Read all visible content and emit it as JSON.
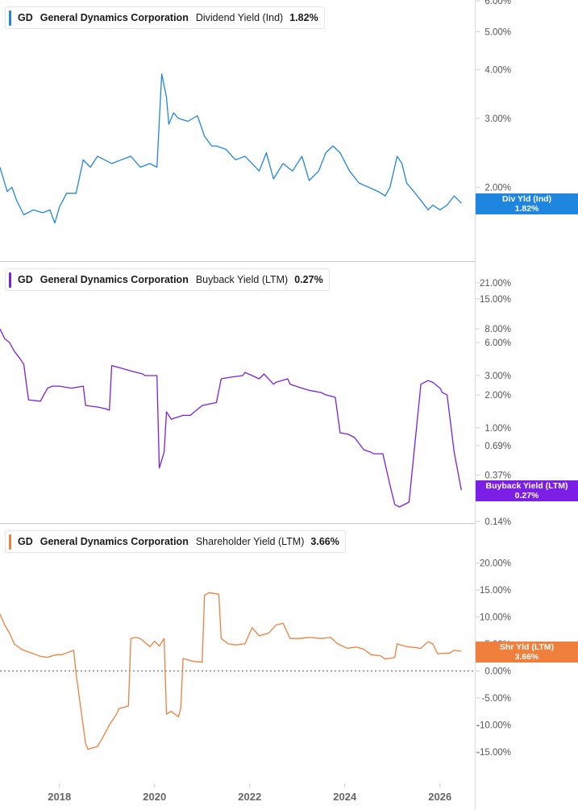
{
  "x_axis_labels": [
    "2018",
    "2020",
    "2022",
    "2024",
    "2026"
  ],
  "colors": {
    "dividend": "#1f86e0",
    "buyback": "#7b1fe6",
    "shareholder": "#f07f3c",
    "divider": "#c9c9c9",
    "axis_text": "#555555"
  },
  "chart_data": [
    {
      "type": "line",
      "ticker": "GD",
      "company": "General Dynamics Corporation",
      "metric": "Dividend Yield (Ind)",
      "current_value": "1.82%",
      "tag_label": "Div Yld (Ind)",
      "tag_value": "1.82%",
      "y_scale": "log",
      "y_tick_labels": [
        "6.00%",
        "5.00%",
        "4.00%",
        "3.00%",
        "2.00%"
      ],
      "y_ticks": [
        6.0,
        5.0,
        4.0,
        3.0,
        2.0
      ],
      "ylim": [
        1.45,
        6.0
      ],
      "xlim": [
        2016.75,
        2026.75
      ],
      "series": [
        {
          "x": [
            2016.75,
            2016.9,
            2017.0,
            2017.1,
            2017.25,
            2017.45,
            2017.65,
            2017.8,
            2017.9,
            2018.0,
            2018.15,
            2018.35,
            2018.5,
            2018.65,
            2018.8,
            2018.95,
            2019.1,
            2019.3,
            2019.5,
            2019.7,
            2019.9,
            2020.05,
            2020.15,
            2020.25,
            2020.3,
            2020.4,
            2020.5,
            2020.7,
            2020.9,
            2021.05,
            2021.2,
            2021.3,
            2021.5,
            2021.7,
            2021.9,
            2022.05,
            2022.2,
            2022.35,
            2022.5,
            2022.7,
            2022.9,
            2023.1,
            2023.25,
            2023.45,
            2023.6,
            2023.75,
            2023.9,
            2024.1,
            2024.3,
            2024.5,
            2024.7,
            2024.85,
            2024.95,
            2025.1,
            2025.2,
            2025.3,
            2025.45,
            2025.6,
            2025.75,
            2025.85,
            2026.0,
            2026.15,
            2026.3,
            2026.45
          ],
          "y": [
            2.25,
            1.95,
            2.0,
            1.85,
            1.7,
            1.75,
            1.72,
            1.75,
            1.62,
            1.78,
            1.93,
            1.93,
            2.35,
            2.25,
            2.4,
            2.35,
            2.3,
            2.35,
            2.4,
            2.25,
            2.3,
            2.25,
            3.9,
            3.4,
            2.9,
            3.1,
            3.0,
            2.95,
            3.05,
            2.7,
            2.55,
            2.55,
            2.5,
            2.35,
            2.4,
            2.3,
            2.2,
            2.45,
            2.1,
            2.3,
            2.2,
            2.4,
            2.08,
            2.2,
            2.45,
            2.55,
            2.45,
            2.2,
            2.05,
            2.0,
            1.95,
            1.9,
            2.0,
            2.4,
            2.3,
            2.05,
            1.95,
            1.85,
            1.75,
            1.8,
            1.75,
            1.8,
            1.9,
            1.82
          ]
        }
      ]
    },
    {
      "type": "line",
      "ticker": "GD",
      "company": "General Dynamics Corporation",
      "metric": "Buyback Yield (LTM)",
      "current_value": "0.27%",
      "tag_label": "Buyback Yield (LTM)",
      "tag_value": "0.27%",
      "y_scale": "log",
      "y_tick_labels": [
        "21.00%",
        "15.00%",
        "8.00%",
        "6.00%",
        "3.00%",
        "2.00%",
        "1.00%",
        "0.69%",
        "0.37%",
        "0.14%"
      ],
      "y_ticks": [
        21.0,
        15.0,
        8.0,
        6.0,
        3.0,
        2.0,
        1.0,
        0.69,
        0.37,
        0.14
      ],
      "ylim": [
        0.14,
        21.0
      ],
      "xlim": [
        2016.75,
        2026.75
      ],
      "series": [
        {
          "x": [
            2016.75,
            2016.85,
            2016.95,
            2017.05,
            2017.15,
            2017.25,
            2017.35,
            2017.6,
            2017.75,
            2017.85,
            2018.0,
            2018.25,
            2018.5,
            2018.55,
            2018.8,
            2018.95,
            2019.05,
            2019.1,
            2019.3,
            2019.5,
            2019.75,
            2019.8,
            2020.05,
            2020.1,
            2020.2,
            2020.25,
            2020.35,
            2020.6,
            2020.75,
            2021.0,
            2021.3,
            2021.4,
            2021.6,
            2021.85,
            2021.9,
            2022.05,
            2022.2,
            2022.3,
            2022.5,
            2022.55,
            2022.8,
            2022.85,
            2023.1,
            2023.25,
            2023.5,
            2023.6,
            2023.8,
            2023.9,
            2024.05,
            2024.2,
            2024.4,
            2024.55,
            2024.6,
            2024.8,
            2024.95,
            2025.05,
            2025.15,
            2025.35,
            2025.6,
            2025.75,
            2025.85,
            2026.0,
            2026.05,
            2026.15,
            2026.3,
            2026.45
          ],
          "y": [
            8.0,
            6.5,
            6.0,
            5.0,
            4.4,
            3.8,
            1.8,
            1.75,
            2.3,
            2.4,
            2.4,
            2.3,
            2.4,
            1.6,
            1.55,
            1.5,
            1.45,
            3.7,
            3.5,
            3.3,
            3.1,
            3.0,
            3.0,
            0.43,
            0.6,
            1.4,
            1.2,
            1.3,
            1.3,
            1.6,
            1.7,
            2.8,
            2.9,
            3.0,
            3.2,
            3.0,
            2.8,
            3.1,
            2.5,
            2.6,
            2.8,
            2.5,
            2.3,
            2.2,
            2.1,
            2.0,
            1.9,
            0.9,
            0.88,
            0.82,
            0.63,
            0.6,
            0.58,
            0.58,
            0.3,
            0.2,
            0.19,
            0.21,
            2.5,
            2.7,
            2.6,
            2.3,
            2.1,
            2.0,
            0.6,
            0.27
          ]
        }
      ]
    },
    {
      "type": "line",
      "ticker": "GD",
      "company": "General Dynamics Corporation",
      "metric": "Shareholder Yield (LTM)",
      "current_value": "3.66%",
      "tag_label": "Shr Yld (LTM)",
      "tag_value": "3.66%",
      "y_scale": "linear",
      "y_tick_labels": [
        "20.00%",
        "15.00%",
        "10.00%",
        "5.00%",
        "0.00%",
        "-5.00%",
        "-10.00%",
        "-15.00%"
      ],
      "y_ticks": [
        20.0,
        15.0,
        10.0,
        5.0,
        0.0,
        -5.0,
        -10.0,
        -15.0
      ],
      "ylim": [
        -18.0,
        22.0
      ],
      "zero_line": true,
      "xlim": [
        2016.75,
        2026.75
      ],
      "series": [
        {
          "x": [
            2016.75,
            2016.85,
            2016.95,
            2017.05,
            2017.2,
            2017.35,
            2017.6,
            2017.75,
            2017.85,
            2017.95,
            2018.05,
            2018.3,
            2018.35,
            2018.55,
            2018.6,
            2018.8,
            2018.9,
            2019.05,
            2019.2,
            2019.25,
            2019.45,
            2019.5,
            2019.6,
            2019.7,
            2019.9,
            2020.0,
            2020.1,
            2020.2,
            2020.25,
            2020.35,
            2020.5,
            2020.55,
            2020.6,
            2020.8,
            2021.0,
            2021.05,
            2021.15,
            2021.35,
            2021.4,
            2021.55,
            2021.7,
            2021.9,
            2022.05,
            2022.2,
            2022.4,
            2022.55,
            2022.7,
            2022.85,
            2023.05,
            2023.25,
            2023.5,
            2023.7,
            2023.85,
            2024.05,
            2024.25,
            2024.4,
            2024.55,
            2024.75,
            2024.85,
            2025.05,
            2025.1,
            2025.3,
            2025.6,
            2025.75,
            2025.85,
            2025.95,
            2026.2,
            2026.3,
            2026.45
          ],
          "y": [
            10.5,
            8.5,
            7.0,
            5.0,
            4.0,
            3.5,
            2.7,
            2.5,
            2.8,
            3.0,
            3.0,
            3.8,
            -0.5,
            -13.5,
            -14.5,
            -14.0,
            -12.5,
            -10.0,
            -8.0,
            -7.0,
            -6.5,
            6.0,
            6.2,
            6.0,
            4.5,
            5.5,
            4.6,
            6.0,
            -8.0,
            -7.5,
            -8.5,
            -7.0,
            2.3,
            1.8,
            1.6,
            14.0,
            14.5,
            14.2,
            6.0,
            5.0,
            4.8,
            5.0,
            8.0,
            6.5,
            7.0,
            8.5,
            8.8,
            6.0,
            6.0,
            6.2,
            6.0,
            6.2,
            5.0,
            4.2,
            4.4,
            4.0,
            3.0,
            2.8,
            2.2,
            2.5,
            5.0,
            4.5,
            4.2,
            5.4,
            5.0,
            3.2,
            3.3,
            3.8,
            3.66
          ]
        }
      ]
    }
  ]
}
